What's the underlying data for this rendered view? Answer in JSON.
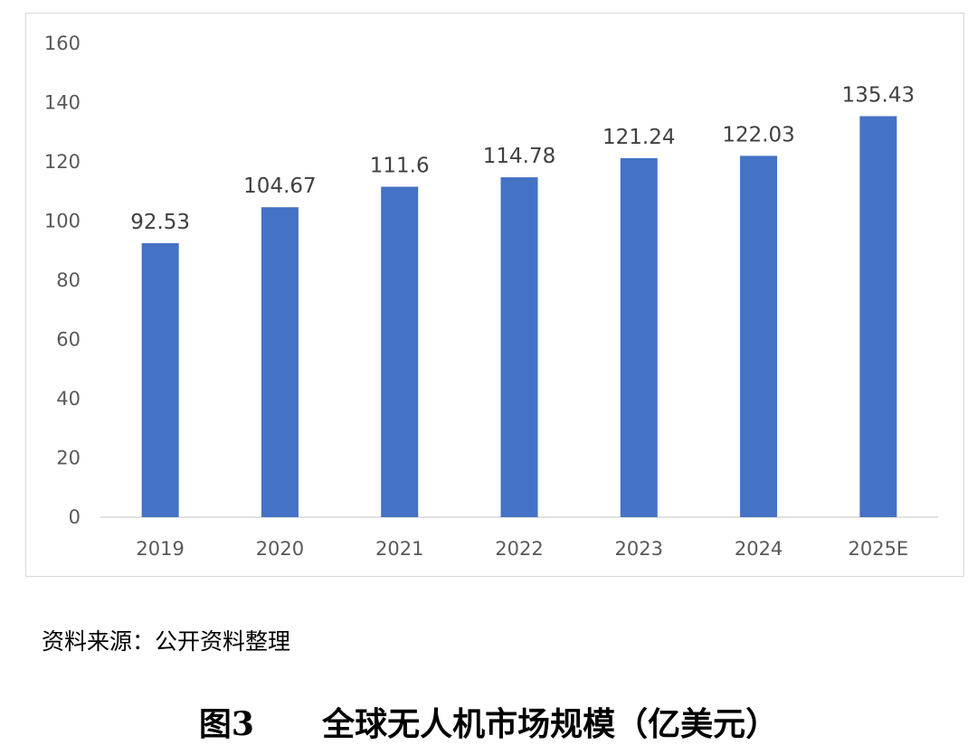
{
  "chart_data": {
    "type": "bar",
    "categories": [
      "2019",
      "2020",
      "2021",
      "2022",
      "2023",
      "2024",
      "2025E"
    ],
    "values": [
      92.53,
      104.67,
      111.6,
      114.78,
      121.24,
      122.03,
      135.43
    ],
    "value_labels": [
      "92.53",
      "104.67",
      "111.6",
      "114.78",
      "121.24",
      "122.03",
      "135.43"
    ],
    "ylim": [
      0,
      160
    ],
    "yticks": [
      "0",
      "20",
      "40",
      "60",
      "80",
      "100",
      "120",
      "140",
      "160"
    ],
    "grid": false,
    "legend": "none",
    "bar_color": "#4472C4",
    "title": "",
    "xlabel": "",
    "ylabel": ""
  },
  "source_note": "资料来源：公开资料整理",
  "caption": {
    "figure_number": "图3",
    "title": "全球无人机市场规模（亿美元）"
  }
}
